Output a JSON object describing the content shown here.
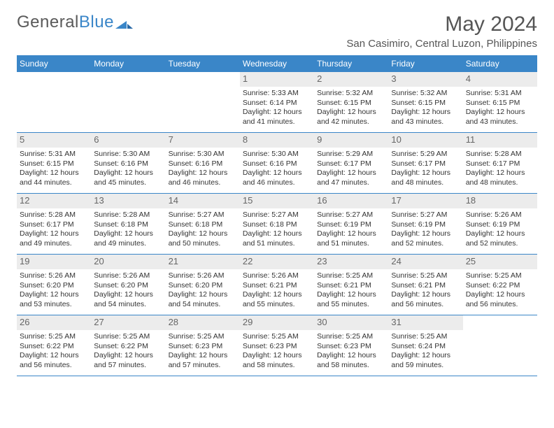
{
  "brand": {
    "part1": "General",
    "part2": "Blue"
  },
  "title": "May 2024",
  "location": "San Casimiro, Central Luzon, Philippines",
  "colors": {
    "header_bg": "#3a86c8",
    "header_text": "#ffffff",
    "daynum_bg": "#ececec",
    "daynum_text": "#666666",
    "row_border": "#3a86c8",
    "body_text": "#333333",
    "title_text": "#555555"
  },
  "weekdays": [
    "Sunday",
    "Monday",
    "Tuesday",
    "Wednesday",
    "Thursday",
    "Friday",
    "Saturday"
  ],
  "weeks": [
    [
      {
        "empty": true
      },
      {
        "empty": true
      },
      {
        "empty": true
      },
      {
        "day": "1",
        "sunrise": "Sunrise: 5:33 AM",
        "sunset": "Sunset: 6:14 PM",
        "daylight1": "Daylight: 12 hours",
        "daylight2": "and 41 minutes."
      },
      {
        "day": "2",
        "sunrise": "Sunrise: 5:32 AM",
        "sunset": "Sunset: 6:15 PM",
        "daylight1": "Daylight: 12 hours",
        "daylight2": "and 42 minutes."
      },
      {
        "day": "3",
        "sunrise": "Sunrise: 5:32 AM",
        "sunset": "Sunset: 6:15 PM",
        "daylight1": "Daylight: 12 hours",
        "daylight2": "and 43 minutes."
      },
      {
        "day": "4",
        "sunrise": "Sunrise: 5:31 AM",
        "sunset": "Sunset: 6:15 PM",
        "daylight1": "Daylight: 12 hours",
        "daylight2": "and 43 minutes."
      }
    ],
    [
      {
        "day": "5",
        "sunrise": "Sunrise: 5:31 AM",
        "sunset": "Sunset: 6:15 PM",
        "daylight1": "Daylight: 12 hours",
        "daylight2": "and 44 minutes."
      },
      {
        "day": "6",
        "sunrise": "Sunrise: 5:30 AM",
        "sunset": "Sunset: 6:16 PM",
        "daylight1": "Daylight: 12 hours",
        "daylight2": "and 45 minutes."
      },
      {
        "day": "7",
        "sunrise": "Sunrise: 5:30 AM",
        "sunset": "Sunset: 6:16 PM",
        "daylight1": "Daylight: 12 hours",
        "daylight2": "and 46 minutes."
      },
      {
        "day": "8",
        "sunrise": "Sunrise: 5:30 AM",
        "sunset": "Sunset: 6:16 PM",
        "daylight1": "Daylight: 12 hours",
        "daylight2": "and 46 minutes."
      },
      {
        "day": "9",
        "sunrise": "Sunrise: 5:29 AM",
        "sunset": "Sunset: 6:17 PM",
        "daylight1": "Daylight: 12 hours",
        "daylight2": "and 47 minutes."
      },
      {
        "day": "10",
        "sunrise": "Sunrise: 5:29 AM",
        "sunset": "Sunset: 6:17 PM",
        "daylight1": "Daylight: 12 hours",
        "daylight2": "and 48 minutes."
      },
      {
        "day": "11",
        "sunrise": "Sunrise: 5:28 AM",
        "sunset": "Sunset: 6:17 PM",
        "daylight1": "Daylight: 12 hours",
        "daylight2": "and 48 minutes."
      }
    ],
    [
      {
        "day": "12",
        "sunrise": "Sunrise: 5:28 AM",
        "sunset": "Sunset: 6:17 PM",
        "daylight1": "Daylight: 12 hours",
        "daylight2": "and 49 minutes."
      },
      {
        "day": "13",
        "sunrise": "Sunrise: 5:28 AM",
        "sunset": "Sunset: 6:18 PM",
        "daylight1": "Daylight: 12 hours",
        "daylight2": "and 49 minutes."
      },
      {
        "day": "14",
        "sunrise": "Sunrise: 5:27 AM",
        "sunset": "Sunset: 6:18 PM",
        "daylight1": "Daylight: 12 hours",
        "daylight2": "and 50 minutes."
      },
      {
        "day": "15",
        "sunrise": "Sunrise: 5:27 AM",
        "sunset": "Sunset: 6:18 PM",
        "daylight1": "Daylight: 12 hours",
        "daylight2": "and 51 minutes."
      },
      {
        "day": "16",
        "sunrise": "Sunrise: 5:27 AM",
        "sunset": "Sunset: 6:19 PM",
        "daylight1": "Daylight: 12 hours",
        "daylight2": "and 51 minutes."
      },
      {
        "day": "17",
        "sunrise": "Sunrise: 5:27 AM",
        "sunset": "Sunset: 6:19 PM",
        "daylight1": "Daylight: 12 hours",
        "daylight2": "and 52 minutes."
      },
      {
        "day": "18",
        "sunrise": "Sunrise: 5:26 AM",
        "sunset": "Sunset: 6:19 PM",
        "daylight1": "Daylight: 12 hours",
        "daylight2": "and 52 minutes."
      }
    ],
    [
      {
        "day": "19",
        "sunrise": "Sunrise: 5:26 AM",
        "sunset": "Sunset: 6:20 PM",
        "daylight1": "Daylight: 12 hours",
        "daylight2": "and 53 minutes."
      },
      {
        "day": "20",
        "sunrise": "Sunrise: 5:26 AM",
        "sunset": "Sunset: 6:20 PM",
        "daylight1": "Daylight: 12 hours",
        "daylight2": "and 54 minutes."
      },
      {
        "day": "21",
        "sunrise": "Sunrise: 5:26 AM",
        "sunset": "Sunset: 6:20 PM",
        "daylight1": "Daylight: 12 hours",
        "daylight2": "and 54 minutes."
      },
      {
        "day": "22",
        "sunrise": "Sunrise: 5:26 AM",
        "sunset": "Sunset: 6:21 PM",
        "daylight1": "Daylight: 12 hours",
        "daylight2": "and 55 minutes."
      },
      {
        "day": "23",
        "sunrise": "Sunrise: 5:25 AM",
        "sunset": "Sunset: 6:21 PM",
        "daylight1": "Daylight: 12 hours",
        "daylight2": "and 55 minutes."
      },
      {
        "day": "24",
        "sunrise": "Sunrise: 5:25 AM",
        "sunset": "Sunset: 6:21 PM",
        "daylight1": "Daylight: 12 hours",
        "daylight2": "and 56 minutes."
      },
      {
        "day": "25",
        "sunrise": "Sunrise: 5:25 AM",
        "sunset": "Sunset: 6:22 PM",
        "daylight1": "Daylight: 12 hours",
        "daylight2": "and 56 minutes."
      }
    ],
    [
      {
        "day": "26",
        "sunrise": "Sunrise: 5:25 AM",
        "sunset": "Sunset: 6:22 PM",
        "daylight1": "Daylight: 12 hours",
        "daylight2": "and 56 minutes."
      },
      {
        "day": "27",
        "sunrise": "Sunrise: 5:25 AM",
        "sunset": "Sunset: 6:22 PM",
        "daylight1": "Daylight: 12 hours",
        "daylight2": "and 57 minutes."
      },
      {
        "day": "28",
        "sunrise": "Sunrise: 5:25 AM",
        "sunset": "Sunset: 6:23 PM",
        "daylight1": "Daylight: 12 hours",
        "daylight2": "and 57 minutes."
      },
      {
        "day": "29",
        "sunrise": "Sunrise: 5:25 AM",
        "sunset": "Sunset: 6:23 PM",
        "daylight1": "Daylight: 12 hours",
        "daylight2": "and 58 minutes."
      },
      {
        "day": "30",
        "sunrise": "Sunrise: 5:25 AM",
        "sunset": "Sunset: 6:23 PM",
        "daylight1": "Daylight: 12 hours",
        "daylight2": "and 58 minutes."
      },
      {
        "day": "31",
        "sunrise": "Sunrise: 5:25 AM",
        "sunset": "Sunset: 6:24 PM",
        "daylight1": "Daylight: 12 hours",
        "daylight2": "and 59 minutes."
      },
      {
        "empty": true
      }
    ]
  ]
}
